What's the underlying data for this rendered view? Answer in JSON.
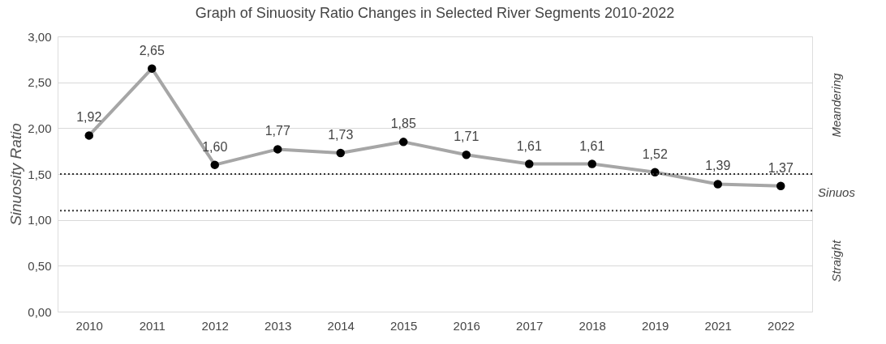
{
  "chart_data": {
    "type": "line",
    "title": "Graph of Sinuosity Ratio Changes in Selected River Segments 2010-2022",
    "ylabel": "Sinuosity Ratio",
    "categories": [
      "2010",
      "2011",
      "2012",
      "2013",
      "2014",
      "2015",
      "2016",
      "2017",
      "2018",
      "2019",
      "2021",
      "2022"
    ],
    "series": [
      {
        "color": "#a6a6a6",
        "values": [
          1.92,
          2.65,
          1.6,
          1.77,
          1.73,
          1.85,
          1.71,
          1.61,
          1.61,
          1.52,
          1.39,
          1.37
        ],
        "value_labels": [
          "1,92",
          "2,65",
          "1,60",
          "1,77",
          "1,73",
          "1,85",
          "1,71",
          "1,61",
          "1,61",
          "1,52",
          "1,39",
          "1,37"
        ]
      }
    ],
    "ylim": [
      0,
      3
    ],
    "yticks": [
      {
        "value": 0,
        "label": "0,00"
      },
      {
        "value": 0.5,
        "label": "0,50"
      },
      {
        "value": 1,
        "label": "1,00"
      },
      {
        "value": 1.5,
        "label": "1,50"
      },
      {
        "value": 2,
        "label": "2,00"
      },
      {
        "value": 2.5,
        "label": "2,50"
      },
      {
        "value": 3,
        "label": "3,00"
      }
    ],
    "ref_lines": [
      {
        "axis": "y",
        "value": 1.5,
        "color": "#333333",
        "line_style": "dotted"
      },
      {
        "axis": "y",
        "value": 1.1,
        "color": "#333333",
        "line_style": "dotted"
      }
    ],
    "annotations": [
      "Meandering",
      "Sinuos",
      "Straight"
    ],
    "grid": "y",
    "marker": "circle",
    "line_style": "solid"
  }
}
